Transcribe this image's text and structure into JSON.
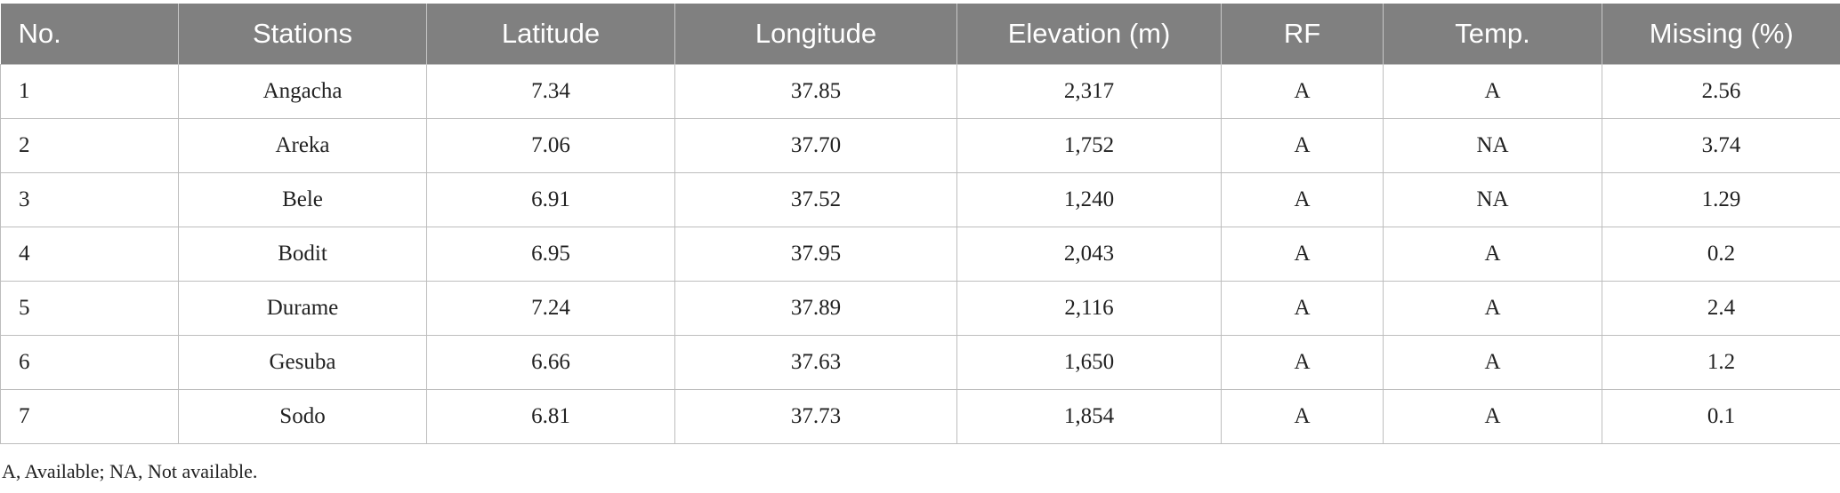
{
  "table": {
    "header": [
      "No.",
      "Stations",
      "Latitude",
      "Longitude",
      "Elevation (m)",
      "RF",
      "Temp.",
      "Missing (%)"
    ],
    "rows": [
      [
        "1",
        "Angacha",
        "7.34",
        "37.85",
        "2,317",
        "A",
        "A",
        "2.56"
      ],
      [
        "2",
        "Areka",
        "7.06",
        "37.70",
        "1,752",
        "A",
        "NA",
        "3.74"
      ],
      [
        "3",
        "Bele",
        "6.91",
        "37.52",
        "1,240",
        "A",
        "NA",
        "1.29"
      ],
      [
        "4",
        "Bodit",
        "6.95",
        "37.95",
        "2,043",
        "A",
        "A",
        "0.2"
      ],
      [
        "5",
        "Durame",
        "7.24",
        "37.89",
        "2,116",
        "A",
        "A",
        "2.4"
      ],
      [
        "6",
        "Gesuba",
        "6.66",
        "37.63",
        "1,650",
        "A",
        "A",
        "1.2"
      ],
      [
        "7",
        "Sodo",
        "6.81",
        "37.73",
        "1,854",
        "A",
        "A",
        "0.1"
      ]
    ]
  },
  "footnote": "A, Available; NA, Not available."
}
